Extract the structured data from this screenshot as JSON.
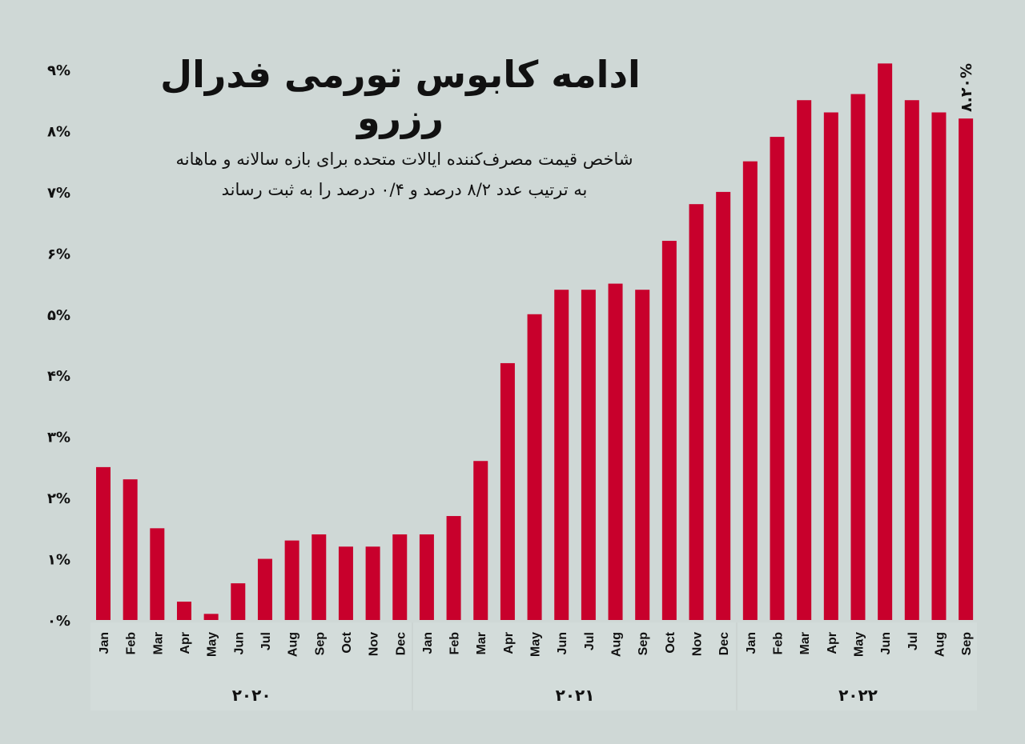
{
  "title": "ادامه کابوس تورمی فدرال رزرو",
  "subtitle_lines": [
    "شاخص قیمت مصرف‌کننده ایالات متحده برای بازه سالانه و ماهانه",
    "به ترتیب عدد ۸/۲ درصد و ۰/۴ درصد را به ثبت رساند"
  ],
  "chart_data": {
    "type": "bar",
    "title": "ادامه کابوس تورمی فدرال رزرو",
    "bar_color": "#c8002c",
    "background": "#cfd8d6",
    "ylim": [
      0,
      9
    ],
    "y_ticks": [
      0,
      1,
      2,
      3,
      4,
      5,
      6,
      7,
      8,
      9
    ],
    "y_tick_labels": [
      "۰%",
      "۱%",
      "۲%",
      "۳%",
      "۴%",
      "۵%",
      "۶%",
      "۷%",
      "۸%",
      "۹%"
    ],
    "years": [
      "۲۰۲۰",
      "۲۰۲۱",
      "۲۰۲۲"
    ],
    "categories": [
      "Jan",
      "Feb",
      "Mar",
      "Apr",
      "May",
      "Jun",
      "Jul",
      "Aug",
      "Sep",
      "Oct",
      "Nov",
      "Dec",
      "Jan",
      "Feb",
      "Mar",
      "Apr",
      "May",
      "Jun",
      "Jul",
      "Aug",
      "Sep",
      "Oct",
      "Nov",
      "Dec",
      "Jan",
      "Feb",
      "Mar",
      "Apr",
      "May",
      "Jun",
      "Jul",
      "Aug",
      "Sep"
    ],
    "values": [
      2.5,
      2.3,
      1.5,
      0.3,
      0.1,
      0.6,
      1.0,
      1.3,
      1.4,
      1.2,
      1.2,
      1.4,
      1.4,
      1.7,
      2.6,
      4.2,
      5.0,
      5.4,
      5.4,
      5.5,
      5.4,
      6.2,
      6.8,
      7.0,
      7.5,
      7.9,
      8.5,
      8.3,
      8.6,
      9.1,
      8.5,
      8.3,
      8.2
    ],
    "annotation": "۸.۲۰%",
    "grid": false
  }
}
